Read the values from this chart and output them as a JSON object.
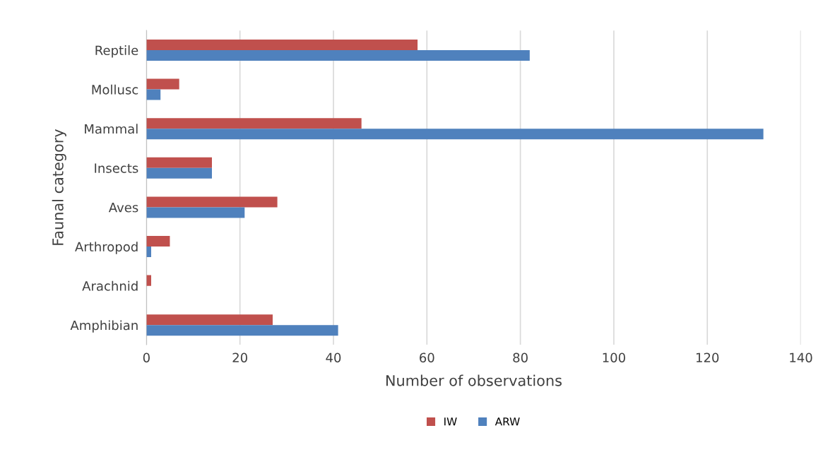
{
  "chart_data": {
    "type": "bar",
    "orientation": "horizontal",
    "xlabel": "Number of observations",
    "ylabel": "Faunal category",
    "categories": [
      "Reptile",
      "Mollusc",
      "Mammal",
      "Insects",
      "Aves",
      "Arthropod",
      "Arachnid",
      "Amphibian"
    ],
    "series": [
      {
        "name": "IW",
        "color": "#c0504d",
        "values": [
          58,
          7,
          46,
          14,
          28,
          5,
          1,
          27
        ]
      },
      {
        "name": "ARW",
        "color": "#4f81bd",
        "values": [
          82,
          3,
          132,
          14,
          21,
          1,
          0,
          41
        ]
      }
    ],
    "xlim": [
      0,
      140
    ],
    "xticks": [
      0,
      20,
      40,
      60,
      80,
      100,
      120,
      140
    ],
    "grid": "x",
    "legend": "bottom"
  }
}
